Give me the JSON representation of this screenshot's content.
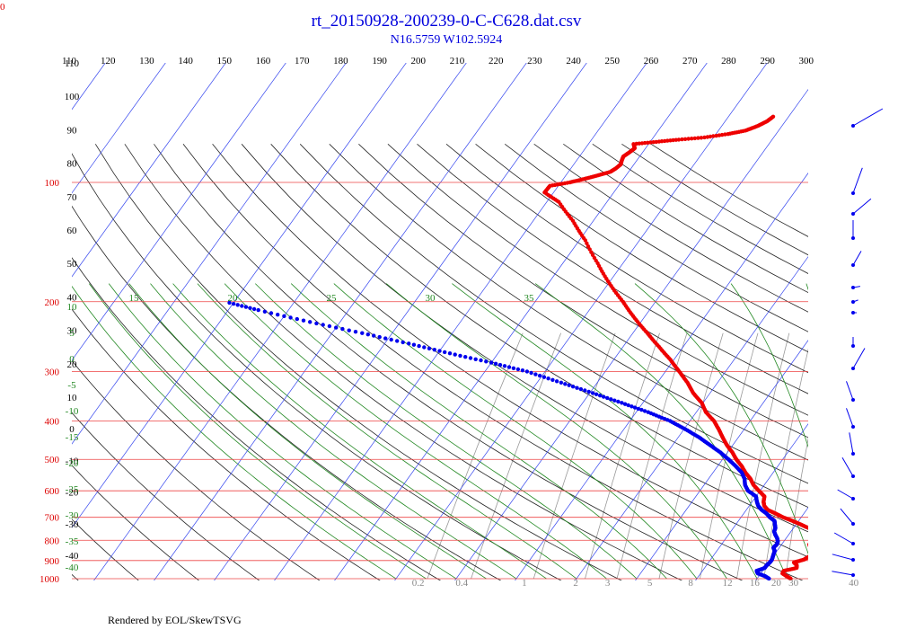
{
  "page": {
    "title": "rt_20150928-200239-0-C-C628.dat.csv",
    "subtitle": "N16.5759 W102.5924",
    "credit": "Rendered by EOL/SkewTSVG",
    "corner_label": "0"
  },
  "chart_data": {
    "type": "skew-t log-p sounding",
    "title": "rt_20150928-200239-0-C-C628.dat.csv",
    "subtitle": "N16.5759 W102.5924",
    "pressure_range_hpa": [
      1000,
      100
    ],
    "temperature_range_c": [
      -40,
      40
    ],
    "theta_top_labels": [
      110,
      120,
      130,
      140,
      150,
      160,
      170,
      180,
      190,
      200,
      210,
      220,
      230,
      240,
      250,
      260,
      270,
      280,
      290,
      300
    ],
    "isobar_labels": [
      100,
      200,
      300,
      400,
      500,
      600,
      700,
      800,
      900,
      1000
    ],
    "isotherm_labels": [
      -110,
      -100,
      -90,
      -80,
      -70,
      -60,
      -50,
      -40,
      -30,
      -20,
      -10,
      0,
      10,
      20,
      30
    ],
    "moist_adiabat_labels": [
      15,
      20,
      25,
      30,
      35
    ],
    "height_labels_km": [
      110,
      100,
      90,
      80,
      70,
      60,
      50,
      40,
      30,
      20,
      10,
      0,
      -10,
      -20,
      -30,
      -40
    ],
    "left_green_labels": [
      10,
      5,
      0,
      -5,
      -10,
      -15,
      -20,
      -25,
      -30,
      -35,
      -40
    ],
    "mixing_ratio_labels": [
      "0.2",
      "0.4",
      "1",
      "2",
      "3",
      "5",
      "8",
      "12",
      "16",
      "20"
    ],
    "bottom_temperature_labels": [
      30,
      40
    ],
    "series": [
      {
        "type": "temperature",
        "color": "#ee0000",
        "points": [
          [
            1000,
            25.6
          ],
          [
            985,
            24.6
          ],
          [
            970,
            23.6
          ],
          [
            955,
            23.5
          ],
          [
            940,
            25.3
          ],
          [
            925,
            25.0
          ],
          [
            910,
            24.2
          ],
          [
            895,
            25.5
          ],
          [
            880,
            26.0
          ],
          [
            865,
            26.5
          ],
          [
            850,
            25.5
          ],
          [
            835,
            25.2
          ],
          [
            820,
            24.6
          ],
          [
            805,
            24.6
          ],
          [
            790,
            24.5
          ],
          [
            775,
            24.4
          ],
          [
            760,
            24.0
          ],
          [
            745,
            22.5
          ],
          [
            730,
            20.8
          ],
          [
            715,
            19.0
          ],
          [
            700,
            17.0
          ],
          [
            685,
            15.3
          ],
          [
            670,
            13.5
          ],
          [
            655,
            12.5
          ],
          [
            640,
            11.9
          ],
          [
            620,
            11.4
          ],
          [
            600,
            9.8
          ],
          [
            580,
            8.2
          ],
          [
            560,
            7.0
          ],
          [
            540,
            5.4
          ],
          [
            520,
            4.0
          ],
          [
            500,
            2.3
          ],
          [
            480,
            0.8
          ],
          [
            460,
            -1.0
          ],
          [
            440,
            -2.6
          ],
          [
            420,
            -4.2
          ],
          [
            400,
            -6.0
          ],
          [
            380,
            -8.4
          ],
          [
            360,
            -10.2
          ],
          [
            340,
            -12.8
          ],
          [
            320,
            -15.0
          ],
          [
            300,
            -17.7
          ],
          [
            280,
            -20.6
          ],
          [
            260,
            -24.0
          ],
          [
            240,
            -27.6
          ],
          [
            220,
            -31.5
          ],
          [
            200,
            -35.4
          ],
          [
            180,
            -39.8
          ],
          [
            160,
            -44.2
          ],
          [
            140,
            -49.0
          ],
          [
            125,
            -53.4
          ],
          [
            112,
            -58.0
          ],
          [
            106,
            -61.5
          ],
          [
            102,
            -61.4
          ],
          [
            100,
            -58.5
          ],
          [
            98,
            -56.5
          ],
          [
            96,
            -54.7
          ],
          [
            94,
            -53.0
          ],
          [
            92,
            -52.5
          ],
          [
            90,
            -52.2
          ],
          [
            88,
            -52.5
          ],
          [
            86,
            -52.7
          ],
          [
            84,
            -52.2
          ],
          [
            82,
            -51.8
          ],
          [
            80,
            -52.5
          ],
          [
            79,
            -49.0
          ],
          [
            78,
            -45.5
          ],
          [
            77,
            -41.5
          ],
          [
            75.5,
            -38.0
          ],
          [
            74,
            -35.5
          ],
          [
            72,
            -34.0
          ],
          [
            70,
            -33.0
          ],
          [
            68,
            -32.5
          ]
        ]
      },
      {
        "type": "dewpoint",
        "color": "#0000ee",
        "points": [
          [
            1000,
            22.0
          ],
          [
            985,
            21.0
          ],
          [
            970,
            19.5
          ],
          [
            955,
            19.0
          ],
          [
            940,
            20.0
          ],
          [
            925,
            20.0
          ],
          [
            910,
            20.2
          ],
          [
            895,
            20.2
          ],
          [
            880,
            20.0
          ],
          [
            865,
            19.8
          ],
          [
            850,
            19.6
          ],
          [
            835,
            19.0
          ],
          [
            820,
            19.2
          ],
          [
            805,
            19.0
          ],
          [
            790,
            18.5
          ],
          [
            775,
            17.8
          ],
          [
            760,
            17.2
          ],
          [
            745,
            17.0
          ],
          [
            730,
            16.5
          ],
          [
            715,
            16.0
          ],
          [
            700,
            14.8
          ],
          [
            685,
            13.8
          ],
          [
            670,
            12.5
          ],
          [
            655,
            11.5
          ],
          [
            640,
            10.8
          ],
          [
            620,
            10.0
          ],
          [
            600,
            8.0
          ],
          [
            580,
            6.8
          ],
          [
            560,
            6.0
          ],
          [
            540,
            4.8
          ],
          [
            520,
            3.0
          ],
          [
            500,
            1.0
          ],
          [
            480,
            -1.2
          ],
          [
            460,
            -3.8
          ],
          [
            440,
            -6.5
          ],
          [
            420,
            -9.7
          ],
          [
            400,
            -13.3
          ],
          [
            380,
            -18.0
          ],
          [
            360,
            -23.5
          ],
          [
            340,
            -29.5
          ],
          [
            320,
            -36.0
          ],
          [
            300,
            -43.0
          ],
          [
            285,
            -50.0
          ],
          [
            270,
            -58.0
          ],
          [
            255,
            -66.0
          ],
          [
            240,
            -75.0
          ],
          [
            225,
            -85.0
          ],
          [
            210,
            -95.0
          ],
          [
            200,
            -101.5
          ]
        ]
      }
    ],
    "wind_barbs_visible": true
  }
}
